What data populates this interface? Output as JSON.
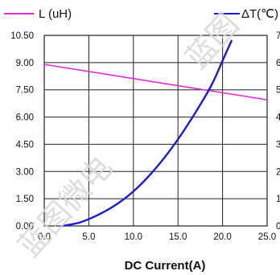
{
  "chart_data": {
    "type": "line",
    "xlabel": "DC Current(A)",
    "x_ticks": [
      "0.0",
      "5.0",
      "10.0",
      "15.0",
      "20.0",
      "25.0"
    ],
    "xlim": [
      0,
      25
    ],
    "y_ticks": [
      "0.00",
      "1.50",
      "3.00",
      "4.50",
      "6.00",
      "7.50",
      "9.00",
      "10.50"
    ],
    "ylim": [
      0,
      10.5
    ],
    "y2_ticks": [
      "0",
      "1",
      "2",
      "3",
      "4",
      "5",
      "6",
      "7"
    ],
    "y2lim": [
      0,
      70
    ],
    "grid": true,
    "legend_placement": "top",
    "series": [
      {
        "name": "L (uH)",
        "color": "#e02be0",
        "axis": "left",
        "x": [
          0,
          25
        ],
        "y": [
          8.9,
          6.95
        ]
      },
      {
        "name": "ΔT(℃)",
        "color": "#1a1ad6",
        "axis": "right",
        "x": [
          2.0,
          4.0,
          6.0,
          8.0,
          10.0,
          12.0,
          14.0,
          16.0,
          18.0,
          19.0,
          20.0,
          21.0
        ],
        "y": [
          0.0,
          1.3,
          4.0,
          7.7,
          12.7,
          19.3,
          27.3,
          36.7,
          47.3,
          53.3,
          60.7,
          68.0
        ]
      }
    ]
  },
  "watermark": {
    "text_main": "蓝图微电",
    "text_top": "蓝图"
  }
}
